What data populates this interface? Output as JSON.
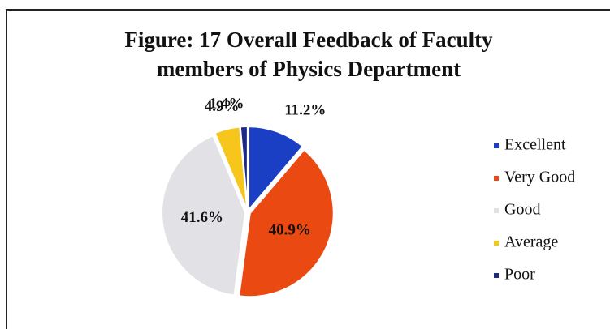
{
  "chart_data": {
    "type": "pie",
    "title": [
      "Figure: 17 Overall Feedback of Faculty",
      "members of Physics Department"
    ],
    "categories": [
      "Excellent",
      "Very Good",
      "Good",
      "Average",
      "Poor"
    ],
    "values": [
      11.2,
      40.9,
      41.6,
      4.9,
      1.4
    ],
    "value_labels": [
      "11.2%",
      "40.9%",
      "41.6%",
      "4.9%",
      "1.4%"
    ],
    "colors": [
      "#1b3fc4",
      "#ea4a12",
      "#e2e2e6",
      "#f6c61c",
      "#1c2a86"
    ],
    "legend": "right"
  }
}
